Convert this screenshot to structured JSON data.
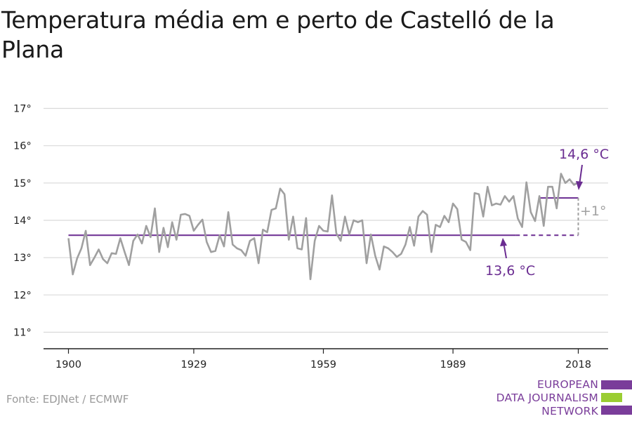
{
  "title": "Temperatura média em e perto de Castelló de la Plana",
  "source": "Fonte: EDJNet / ECMWF",
  "logo": {
    "lines": [
      "EUROPEAN",
      "DATA JOURNALISM",
      "NETWORK"
    ],
    "colors": {
      "purple": "#7a3d9a",
      "green": "#9acd32"
    }
  },
  "colors": {
    "series": "#a0a0a0",
    "reference": "#6a2c91",
    "delta": "#a0a0a0",
    "grid": "#d9d9d9",
    "axis": "#222222"
  },
  "chart_data": {
    "type": "line",
    "title": "Temperatura média em e perto de Castelló de la Plana",
    "xlabel": "",
    "ylabel": "",
    "xlim": [
      1900,
      2018
    ],
    "ylim": [
      11,
      17
    ],
    "x_ticks": [
      1900,
      1929,
      1959,
      1989,
      2018
    ],
    "y_ticks": [
      {
        "value": 11,
        "label": "11°"
      },
      {
        "value": 12,
        "label": "12°"
      },
      {
        "value": 13,
        "label": "13°"
      },
      {
        "value": 14,
        "label": "14°"
      },
      {
        "value": 15,
        "label": "15°"
      },
      {
        "value": 16,
        "label": "16°"
      },
      {
        "value": 17,
        "label": "17°"
      }
    ],
    "grid": true,
    "x": [
      1900,
      1901,
      1902,
      1903,
      1904,
      1905,
      1906,
      1907,
      1908,
      1909,
      1910,
      1911,
      1912,
      1913,
      1914,
      1915,
      1916,
      1917,
      1918,
      1919,
      1920,
      1921,
      1922,
      1923,
      1924,
      1925,
      1926,
      1927,
      1928,
      1929,
      1930,
      1931,
      1932,
      1933,
      1934,
      1935,
      1936,
      1937,
      1938,
      1939,
      1940,
      1941,
      1942,
      1943,
      1944,
      1945,
      1946,
      1947,
      1948,
      1949,
      1950,
      1951,
      1952,
      1953,
      1954,
      1955,
      1956,
      1957,
      1958,
      1959,
      1960,
      1961,
      1962,
      1963,
      1964,
      1965,
      1966,
      1967,
      1968,
      1969,
      1970,
      1971,
      1972,
      1973,
      1974,
      1975,
      1976,
      1977,
      1978,
      1979,
      1980,
      1981,
      1982,
      1983,
      1984,
      1985,
      1986,
      1987,
      1988,
      1989,
      1990,
      1991,
      1992,
      1993,
      1994,
      1995,
      1996,
      1997,
      1998,
      1999,
      2000,
      2001,
      2002,
      2003,
      2004,
      2005,
      2006,
      2007,
      2008,
      2009,
      2010,
      2011,
      2012,
      2013,
      2014,
      2015,
      2016,
      2017,
      2018
    ],
    "series": [
      {
        "values": [
          13.52,
          12.55,
          12.98,
          13.25,
          13.72,
          12.8,
          13.0,
          13.22,
          12.96,
          12.85,
          13.12,
          13.1,
          13.52,
          13.15,
          12.8,
          13.45,
          13.62,
          13.38,
          13.85,
          13.55,
          14.32,
          13.15,
          13.8,
          13.28,
          13.95,
          13.48,
          14.15,
          14.17,
          14.12,
          13.72,
          13.88,
          14.02,
          13.42,
          13.15,
          13.18,
          13.6,
          13.3,
          14.22,
          13.35,
          13.25,
          13.2,
          13.05,
          13.45,
          13.52,
          12.85,
          13.75,
          13.68,
          14.28,
          14.32,
          14.85,
          14.7,
          13.48,
          14.1,
          13.25,
          13.22,
          14.06,
          12.42,
          13.45,
          13.85,
          13.72,
          13.7,
          14.67,
          13.65,
          13.45,
          14.1,
          13.62,
          14.0,
          13.95,
          14.0,
          12.85,
          13.62,
          13.05,
          12.68,
          13.3,
          13.25,
          13.15,
          13.02,
          13.1,
          13.35,
          13.82,
          13.32,
          14.1,
          14.25,
          14.15,
          13.15,
          13.88,
          13.82,
          14.12,
          13.95,
          14.45,
          14.3,
          13.48,
          13.42,
          13.2,
          14.73,
          14.7,
          14.1,
          14.9,
          14.4,
          14.45,
          14.42,
          14.65,
          14.5,
          14.65,
          14.05,
          13.82,
          15.02,
          14.22,
          13.98,
          14.65,
          13.85,
          14.9,
          14.9,
          14.32,
          15.25,
          15.0,
          15.1,
          14.95,
          15.02
        ]
      }
    ],
    "reference_lines": [
      {
        "value": 13.6,
        "from": 1900,
        "to": 2018,
        "label": "13,6 °C"
      },
      {
        "value": 14.6,
        "from": 2009,
        "to": 2018,
        "label": "14,6 °C"
      }
    ],
    "difference_label": "+1°"
  }
}
